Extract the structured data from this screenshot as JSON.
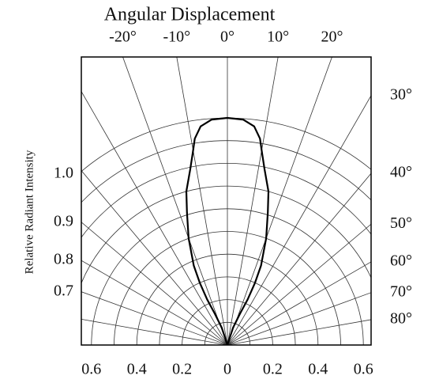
{
  "chart_data": {
    "type": "polar",
    "title": "Angular Displacement",
    "ylabel": "Relative Radiant Intensity",
    "top_ticks": [
      {
        "value": -20,
        "label": "-20°"
      },
      {
        "value": -10,
        "label": "-10°"
      },
      {
        "value": 0,
        "label": "0°"
      },
      {
        "value": 10,
        "label": "10°"
      },
      {
        "value": 20,
        "label": "20°"
      }
    ],
    "side_ticks": [
      {
        "value": 30,
        "label": "30°"
      },
      {
        "value": 40,
        "label": "40°"
      },
      {
        "value": 50,
        "label": "50°"
      },
      {
        "value": 60,
        "label": "60°"
      },
      {
        "value": 70,
        "label": "70°"
      },
      {
        "value": 80,
        "label": "80°"
      }
    ],
    "left_labels": [
      "1.0",
      "0.9",
      "0.8",
      "0.7"
    ],
    "xticks": [
      {
        "value": -0.6,
        "label": "0.6"
      },
      {
        "value": -0.4,
        "label": "0.4"
      },
      {
        "value": -0.2,
        "label": "0.2"
      },
      0,
      0.2,
      0.4,
      0.6
    ],
    "rticks": [
      0.1,
      0.2,
      0.3,
      0.4,
      0.5,
      0.6,
      0.7,
      0.8,
      0.9,
      1.0
    ],
    "angle_grid": [
      -90,
      -80,
      -70,
      -60,
      -50,
      -40,
      -30,
      -20,
      -10,
      0,
      10,
      20,
      30,
      40,
      50,
      60,
      70,
      80,
      90
    ],
    "series": [
      {
        "color": "#000000",
        "x": [
          0,
          -18,
          -22,
          -24,
          -24,
          -23,
          -20,
          -17,
          -15,
          -12,
          -10,
          -9,
          -7,
          -4,
          0,
          4,
          7,
          9,
          10,
          12,
          15,
          17,
          20,
          23,
          24,
          24,
          22,
          18,
          0
        ],
        "values": [
          0,
          0.08,
          0.15,
          0.22,
          0.3,
          0.38,
          0.5,
          0.61,
          0.7,
          0.79,
          0.87,
          0.92,
          0.97,
          0.995,
          1.0,
          0.995,
          0.97,
          0.92,
          0.87,
          0.79,
          0.7,
          0.61,
          0.5,
          0.38,
          0.3,
          0.22,
          0.15,
          0.08,
          0
        ]
      }
    ]
  }
}
